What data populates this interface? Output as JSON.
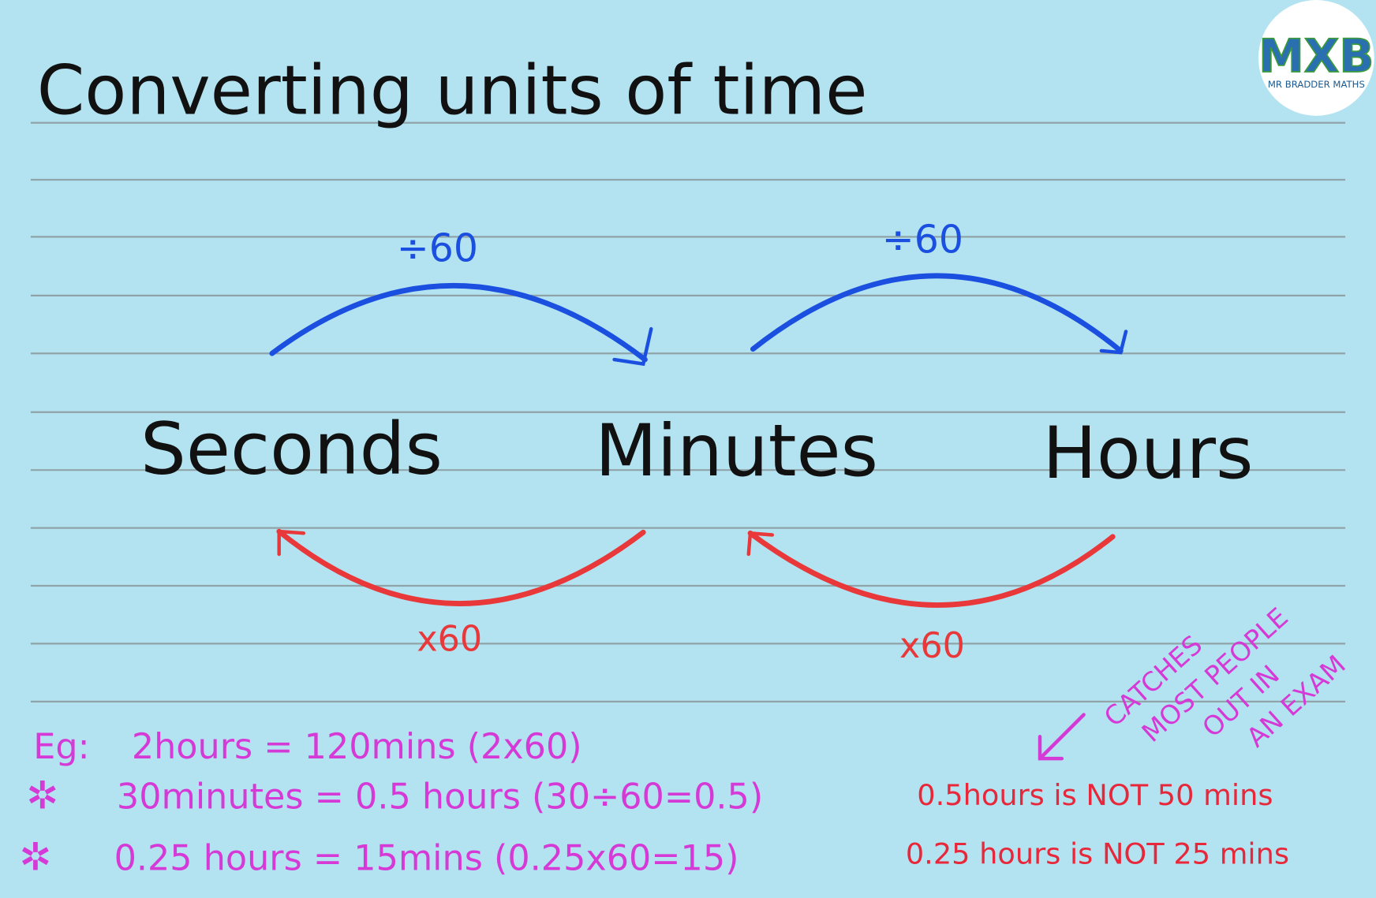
{
  "title": "Converting units of time",
  "logo": {
    "letters": "MXB",
    "caption": "MR BRADDER MATHS"
  },
  "nodes": [
    {
      "label": "Seconds"
    },
    {
      "label": "Minutes"
    },
    {
      "label": "Hours"
    }
  ],
  "arrows": [
    {
      "label": "÷60"
    },
    {
      "label": "÷60"
    },
    {
      "label": "x60"
    },
    {
      "label": "x60"
    }
  ],
  "callout": {
    "lines": [
      "CATCHES",
      "MOST PEOPLE",
      "OUT IN",
      "AN EXAM"
    ]
  },
  "examples": [
    {
      "marker": "Eg:",
      "text": "2hours = 120mins (2x60)"
    },
    {
      "marker": "✲",
      "text": "30minutes = 0.5 hours (30÷60=0.5)",
      "note": "0.5hours is NOT 50 mins"
    },
    {
      "marker": "✲",
      "text": "0.25 hours = 15mins (0.25x60=15)",
      "note": "0.25 hours is NOT 25 mins"
    }
  ]
}
